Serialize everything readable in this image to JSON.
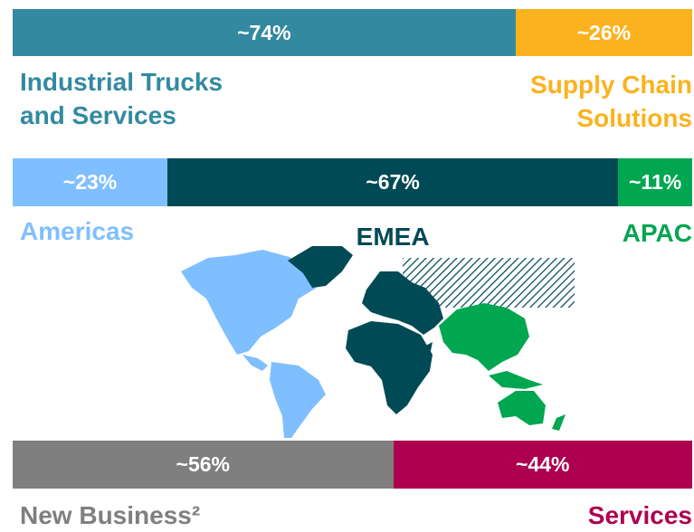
{
  "chart_data": [
    {
      "type": "stacked-bar",
      "series": [
        {
          "name": "Industrial Trucks and Services",
          "color": "#338aa0",
          "values": [
            74
          ],
          "value_labels": [
            "~74%"
          ]
        },
        {
          "name": "Supply Chain Solutions",
          "color": "#fbb21e",
          "values": [
            26
          ],
          "value_labels": [
            "~26%"
          ]
        }
      ]
    },
    {
      "type": "stacked-bar",
      "series": [
        {
          "name": "Americas",
          "color": "#7fbfff",
          "values": [
            23
          ],
          "value_labels": [
            "~23%"
          ]
        },
        {
          "name": "EMEA",
          "color": "#004a56",
          "values": [
            67
          ],
          "value_labels": [
            "~67%"
          ]
        },
        {
          "name": "APAC",
          "color": "#00a650",
          "values": [
            11
          ],
          "value_labels": [
            "~11%"
          ]
        }
      ]
    },
    {
      "type": "stacked-bar",
      "series": [
        {
          "name": "New Business²",
          "color": "#7f7f7f",
          "values": [
            56
          ],
          "value_labels": [
            "~56%"
          ]
        },
        {
          "name": "Services",
          "color": "#ad0050",
          "values": [
            44
          ],
          "value_labels": [
            "~44%"
          ]
        }
      ]
    }
  ]
}
